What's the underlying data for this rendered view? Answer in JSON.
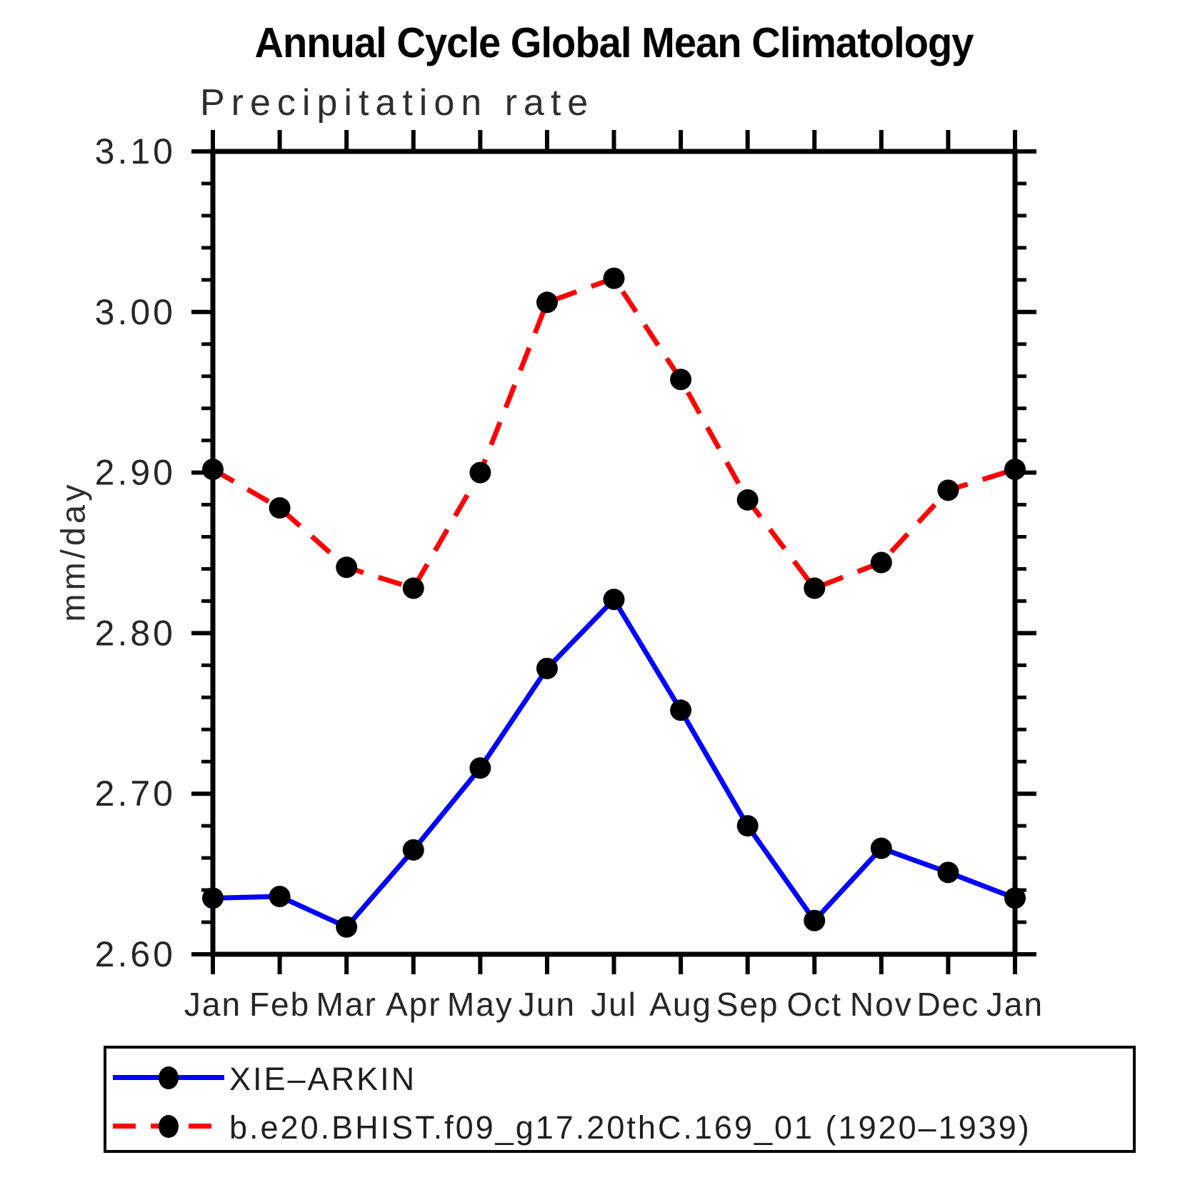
{
  "page": {
    "background": "#ffffff"
  },
  "chart_data": {
    "type": "line",
    "title": "Annual Cycle Global Mean Climatology",
    "subtitle": "Precipitation rate",
    "ylabel": "mm/day",
    "xlabel": "",
    "categories": [
      "Jan",
      "Feb",
      "Mar",
      "Apr",
      "May",
      "Jun",
      "Jul",
      "Aug",
      "Sep",
      "Oct",
      "Nov",
      "Dec",
      "Jan"
    ],
    "ylim": [
      2.6,
      3.1
    ],
    "ytick_major_step": 0.1,
    "ytick_minor_step": 0.02,
    "ytick_labels": [
      "2.60",
      "2.70",
      "2.80",
      "2.90",
      "3.00",
      "3.10"
    ],
    "grid": false,
    "legend_position": "bottom",
    "axis_color": "#000000",
    "marker_color": "#000000",
    "series": [
      {
        "name": "XIE–ARKIN",
        "color": "#0000ff",
        "line_style": "solid",
        "marker": "circle",
        "values": [
          2.635,
          2.636,
          2.617,
          2.665,
          2.716,
          2.778,
          2.821,
          2.752,
          2.68,
          2.621,
          2.666,
          2.651,
          2.635
        ]
      },
      {
        "name": "b.e20.BHIST.f09_g17.20thC.169_01 (1920–1939)",
        "color": "#ff0000",
        "line_style": "dashed",
        "marker": "circle",
        "values": [
          2.902,
          2.878,
          2.841,
          2.828,
          2.9,
          3.006,
          3.021,
          2.958,
          2.883,
          2.828,
          2.844,
          2.889,
          2.902
        ]
      }
    ]
  }
}
